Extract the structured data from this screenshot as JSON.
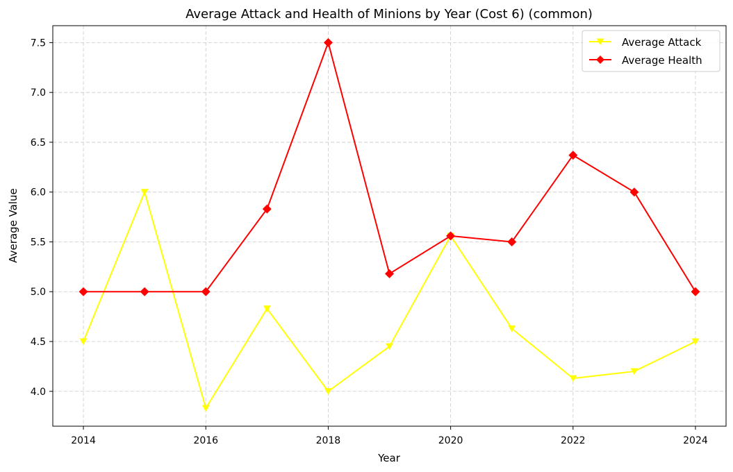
{
  "chart_data": {
    "type": "line",
    "title": "Average Attack and Health of Minions by Year (Cost 6) (common)",
    "xlabel": "Year",
    "ylabel": "Average Value",
    "x": [
      2014,
      2015,
      2016,
      2017,
      2018,
      2019,
      2020,
      2021,
      2022,
      2023,
      2024
    ],
    "xticks": [
      2014,
      2016,
      2018,
      2020,
      2022,
      2024
    ],
    "yticks": [
      4.0,
      4.5,
      5.0,
      5.5,
      6.0,
      6.5,
      7.0,
      7.5
    ],
    "ytick_labels": [
      "4.0",
      "4.5",
      "5.0",
      "5.5",
      "6.0",
      "6.5",
      "7.0",
      "7.5"
    ],
    "xlim": [
      2013.5,
      2024.5
    ],
    "ylim": [
      3.65,
      7.67
    ],
    "grid": true,
    "legend_position": "top-right",
    "series": [
      {
        "name": "Average Attack",
        "color": "#ffff00",
        "marker": "triangle-down",
        "values": [
          4.5,
          6.0,
          3.83,
          4.83,
          4.0,
          4.45,
          5.56,
          4.63,
          4.13,
          4.2,
          4.5
        ]
      },
      {
        "name": "Average Health",
        "color": "#ff0000",
        "marker": "diamond",
        "values": [
          5.0,
          5.0,
          5.0,
          5.83,
          7.5,
          5.18,
          5.56,
          5.5,
          6.37,
          6.0,
          5.0
        ]
      }
    ]
  }
}
